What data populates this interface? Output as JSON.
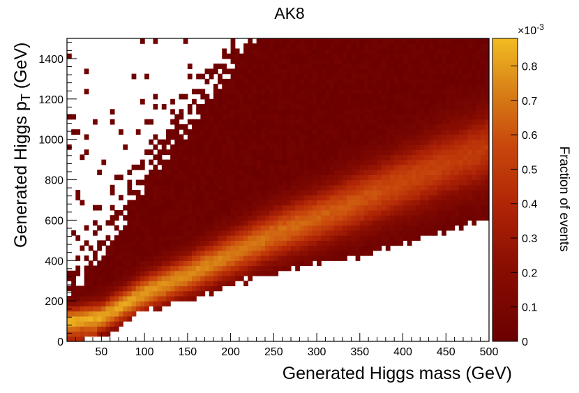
{
  "chart_data": {
    "type": "heatmap",
    "title": "AK8",
    "xlabel": "Generated Higgs mass (GeV)",
    "ylabel_main": "Generated Higgs p",
    "ylabel_sub": "T",
    "ylabel_unit": " (GeV)",
    "zlabel": "Fraction of events",
    "z_multiplier": "×10",
    "z_exponent": "-3",
    "xlim": [
      10,
      500
    ],
    "ylim": [
      0,
      1500
    ],
    "zlim": [
      0,
      0.00088
    ],
    "x_ticks": [
      50,
      100,
      150,
      200,
      250,
      300,
      350,
      400,
      450,
      500
    ],
    "x_tick_labels": [
      "50",
      "100",
      "150",
      "200",
      "250",
      "300",
      "350",
      "400",
      "450",
      "500"
    ],
    "y_ticks": [
      0,
      200,
      400,
      600,
      800,
      1000,
      1200,
      1400
    ],
    "y_tick_labels": [
      "0",
      "200",
      "400",
      "600",
      "800",
      "1000",
      "1200",
      "1400"
    ],
    "z_ticks": [
      0,
      0.1,
      0.2,
      0.3,
      0.4,
      0.5,
      0.6,
      0.7,
      0.8
    ],
    "z_tick_labels": [
      "0",
      "0.1",
      "0.2",
      "0.3",
      "0.4",
      "0.5",
      "0.6",
      "0.7",
      "0.8"
    ],
    "bins": {
      "x_count": 98,
      "y_count": 60
    },
    "ridge": {
      "description": "peak density runs along pT ≈ 2·mass",
      "points": [
        [
          20,
          100
        ],
        [
          50,
          120
        ],
        [
          100,
          240
        ],
        [
          150,
          330
        ],
        [
          200,
          430
        ],
        [
          250,
          530
        ],
        [
          300,
          610
        ],
        [
          350,
          700
        ],
        [
          400,
          790
        ],
        [
          450,
          880
        ],
        [
          500,
          960
        ]
      ],
      "peak_value_e3": 0.88
    },
    "lower_edge": [
      [
        10,
        0
      ],
      [
        60,
        60
      ],
      [
        100,
        170
      ],
      [
        150,
        210
      ],
      [
        200,
        290
      ],
      [
        250,
        360
      ],
      [
        300,
        400
      ],
      [
        350,
        440
      ],
      [
        400,
        500
      ],
      [
        450,
        560
      ],
      [
        500,
        620
      ]
    ],
    "colors": {
      "low": "#6b0000",
      "mid": "#b52208",
      "high": "#e8aa1e",
      "top": "#f2bc22"
    }
  }
}
